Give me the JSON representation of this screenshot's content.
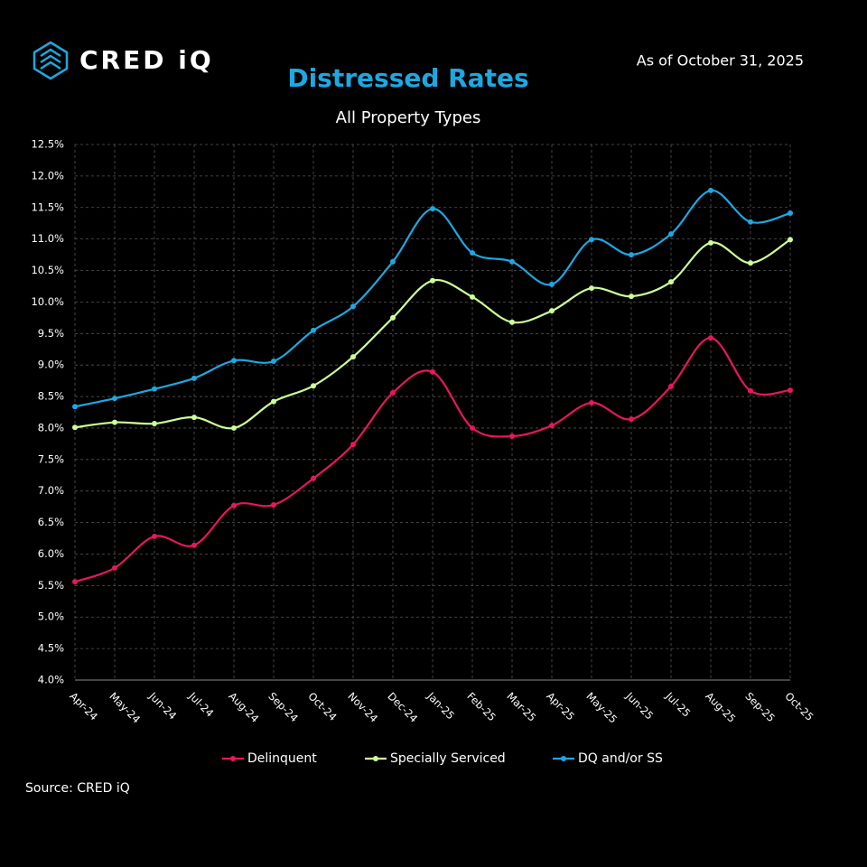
{
  "logo": "CRED iQ",
  "as_of": "As of October 31, 2025",
  "source": "Source: CRED iQ",
  "chart_data": {
    "type": "line",
    "title": "Distressed Rates",
    "subtitle": "All Property Types",
    "categories": [
      "Apr-24",
      "May-24",
      "Jun-24",
      "Jul-24",
      "Aug-24",
      "Sep-24",
      "Oct-24",
      "Nov-24",
      "Dec-24",
      "Jan-25",
      "Feb-25",
      "Mar-25",
      "Apr-25",
      "May-25",
      "Jun-25",
      "Jul-25",
      "Aug-25",
      "Sep-25",
      "Oct-25"
    ],
    "series": [
      {
        "name": "Delinquent",
        "color": "#e8175d",
        "values": [
          5.56,
          5.78,
          6.28,
          6.14,
          6.77,
          6.78,
          7.2,
          7.74,
          8.56,
          8.89,
          8.0,
          7.87,
          8.04,
          8.4,
          8.14,
          8.66,
          9.43,
          8.59,
          8.6
        ]
      },
      {
        "name": "Specially Serviced",
        "color": "#ccff99",
        "values": [
          8.01,
          8.09,
          8.07,
          8.17,
          8.0,
          8.42,
          8.67,
          9.13,
          9.75,
          10.34,
          10.08,
          9.68,
          9.86,
          10.22,
          10.09,
          10.32,
          10.94,
          10.62,
          10.99
        ]
      },
      {
        "name": "DQ and/or SS",
        "color": "#1ea7e1",
        "values": [
          8.34,
          8.47,
          8.62,
          8.79,
          9.07,
          9.06,
          9.55,
          9.93,
          10.64,
          11.48,
          10.78,
          10.64,
          10.28,
          10.99,
          10.75,
          11.08,
          11.77,
          11.27,
          11.41
        ]
      }
    ],
    "ylim": [
      4.0,
      12.5
    ],
    "yticks": [
      {
        "value": 4.0,
        "label": "4.0%"
      },
      {
        "value": 4.5,
        "label": "4.5%"
      },
      {
        "value": 5.0,
        "label": "5.0%"
      },
      {
        "value": 5.5,
        "label": "5.5%"
      },
      {
        "value": 6.0,
        "label": "6.0%"
      },
      {
        "value": 6.5,
        "label": "6.5%"
      },
      {
        "value": 7.0,
        "label": "7.0%"
      },
      {
        "value": 7.5,
        "label": "7.5%"
      },
      {
        "value": 8.0,
        "label": "8.0%"
      },
      {
        "value": 8.5,
        "label": "8.5%"
      },
      {
        "value": 9.0,
        "label": "9.0%"
      },
      {
        "value": 9.5,
        "label": "9.5%"
      },
      {
        "value": 10.0,
        "label": "10.0%"
      },
      {
        "value": 10.5,
        "label": "10.5%"
      },
      {
        "value": 11.0,
        "label": "11.0%"
      },
      {
        "value": 11.5,
        "label": "11.5%"
      },
      {
        "value": 12.0,
        "label": "12.0%"
      },
      {
        "value": 12.5,
        "label": "12.5%"
      }
    ],
    "grid": true,
    "legend": "bottom"
  }
}
